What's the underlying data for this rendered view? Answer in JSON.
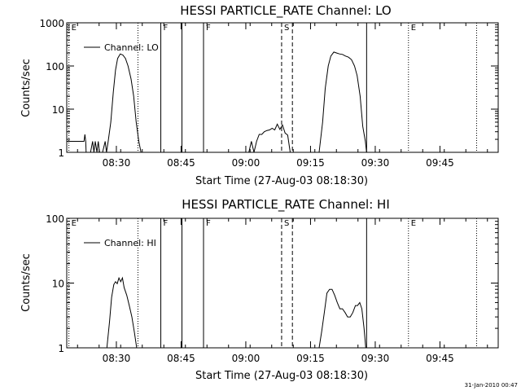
{
  "footer_date": "31-Jan-2010 00:47",
  "chart_data": [
    {
      "type": "line",
      "title": "HESSI PARTICLE_RATE Channel: LO",
      "xlabel": "Start Time (27-Aug-03 08:18:30)",
      "ylabel": "Counts/sec",
      "y_scale": "log",
      "ylim": [
        1,
        1000
      ],
      "y_ticks": [
        1,
        10,
        100,
        1000
      ],
      "y_tick_labels": [
        "1",
        "10",
        "100",
        "1000"
      ],
      "xlim_minutes_after_start": [
        0,
        100
      ],
      "x_ticks_minutes": [
        11.5,
        26.5,
        41.5,
        56.5,
        71.5,
        86.5
      ],
      "x_tick_labels": [
        "08:30",
        "08:45",
        "09:00",
        "09:15",
        "09:30",
        "09:45"
      ],
      "legend": {
        "label": "Channel: LO",
        "position": "top-left"
      },
      "markers": [
        {
          "t": 0.5,
          "label": "E",
          "style": "dotted"
        },
        {
          "t": 16.5,
          "label": "",
          "style": "dotted"
        },
        {
          "t": 21.8,
          "label": "F",
          "style": "solid"
        },
        {
          "t": 26.7,
          "label": "",
          "style": "solid"
        },
        {
          "t": 31.7,
          "label": "F",
          "style": "solid"
        },
        {
          "t": 49.8,
          "label": "S",
          "style": "dashed"
        },
        {
          "t": 52.3,
          "label": "",
          "style": "dashed"
        },
        {
          "t": 69.5,
          "label": "",
          "style": "solid"
        },
        {
          "t": 79.2,
          "label": "E",
          "style": "dotted"
        },
        {
          "t": 95.0,
          "label": "",
          "style": "dotted"
        }
      ],
      "series": [
        {
          "name": "Channel: LO",
          "x": [
            0.0,
            0.5,
            4.0,
            4.2,
            4.4,
            4.5,
            5.5,
            6.0,
            6.3,
            6.6,
            7.0,
            7.3,
            7.6,
            8.3,
            8.9,
            9.2,
            9.6,
            10.2,
            10.8,
            11.3,
            11.8,
            12.4,
            13.0,
            13.6,
            14.2,
            14.9,
            15.5,
            16.1,
            16.7,
            17.2,
            null,
            42.2,
            42.8,
            43.4,
            44.0,
            44.6,
            45.2,
            45.8,
            46.4,
            47.0,
            47.6,
            48.2,
            48.8,
            49.4,
            50.0,
            50.6,
            51.2,
            51.8,
            null,
            58.5,
            59.3,
            59.9,
            60.6,
            61.2,
            61.9,
            62.5,
            63.2,
            63.9,
            64.6,
            65.3,
            66.0,
            66.7,
            67.3,
            68.0,
            68.6,
            69.2,
            69.5
          ],
          "y": [
            1.8,
            1.8,
            1.8,
            2.6,
            1.8,
            1.0,
            1.0,
            1.8,
            1.0,
            1.8,
            1.0,
            1.8,
            1.0,
            1.0,
            1.8,
            1.0,
            1.8,
            5.0,
            25,
            80,
            150,
            190,
            180,
            150,
            100,
            50,
            20,
            5.0,
            1.8,
            1.0,
            null,
            1.0,
            1.8,
            1.0,
            1.8,
            2.6,
            2.6,
            3.0,
            3.2,
            3.3,
            3.6,
            3.3,
            4.5,
            3.4,
            4.3,
            2.8,
            2.5,
            1.0,
            null,
            1.0,
            5.0,
            30,
            100,
            170,
            210,
            200,
            190,
            185,
            170,
            160,
            140,
            100,
            60,
            20,
            4.0,
            1.8,
            1.0
          ]
        }
      ]
    },
    {
      "type": "line",
      "title": "HESSI PARTICLE_RATE Channel: HI",
      "xlabel": "Start Time (27-Aug-03 08:18:30)",
      "ylabel": "Counts/sec",
      "y_scale": "log",
      "ylim": [
        1,
        100
      ],
      "y_ticks": [
        1,
        10,
        100
      ],
      "y_tick_labels": [
        "1",
        "10",
        "100"
      ],
      "xlim_minutes_after_start": [
        0,
        100
      ],
      "x_ticks_minutes": [
        11.5,
        26.5,
        41.5,
        56.5,
        71.5,
        86.5
      ],
      "x_tick_labels": [
        "08:30",
        "08:45",
        "09:00",
        "09:15",
        "09:30",
        "09:45"
      ],
      "legend": {
        "label": "Channel: HI",
        "position": "top-left"
      },
      "markers": [
        {
          "t": 0.5,
          "label": "E",
          "style": "dotted"
        },
        {
          "t": 16.5,
          "label": "",
          "style": "dotted"
        },
        {
          "t": 21.8,
          "label": "F",
          "style": "solid"
        },
        {
          "t": 26.7,
          "label": "",
          "style": "solid"
        },
        {
          "t": 31.7,
          "label": "F",
          "style": "solid"
        },
        {
          "t": 49.8,
          "label": "S",
          "style": "dashed"
        },
        {
          "t": 52.3,
          "label": "",
          "style": "dashed"
        },
        {
          "t": 69.5,
          "label": "",
          "style": "solid"
        },
        {
          "t": 79.2,
          "label": "E",
          "style": "dotted"
        },
        {
          "t": 95.0,
          "label": "",
          "style": "dotted"
        }
      ],
      "series": [
        {
          "name": "Channel: HI",
          "x": [
            9.3,
            9.9,
            10.4,
            10.9,
            11.3,
            11.7,
            12.1,
            12.5,
            12.9,
            13.3,
            13.9,
            14.5,
            15.1,
            15.7,
            16.2,
            null,
            58.5,
            59.1,
            59.7,
            60.3,
            60.9,
            61.5,
            62.1,
            62.7,
            63.3,
            63.9,
            64.5,
            65.1,
            65.7,
            66.3,
            66.9,
            67.4,
            67.9,
            68.4,
            68.9,
            69.3
          ],
          "y": [
            1.0,
            2.5,
            6.0,
            9.5,
            10.5,
            9.8,
            12.0,
            10.5,
            12.0,
            8.5,
            6.5,
            4.5,
            3.0,
            1.7,
            1.0,
            null,
            1.0,
            1.8,
            3.5,
            7.0,
            8.0,
            8.0,
            6.5,
            5.0,
            4.0,
            4.0,
            3.5,
            3.0,
            3.0,
            3.5,
            4.5,
            4.5,
            5.0,
            4.0,
            2.0,
            1.0
          ]
        }
      ]
    }
  ]
}
